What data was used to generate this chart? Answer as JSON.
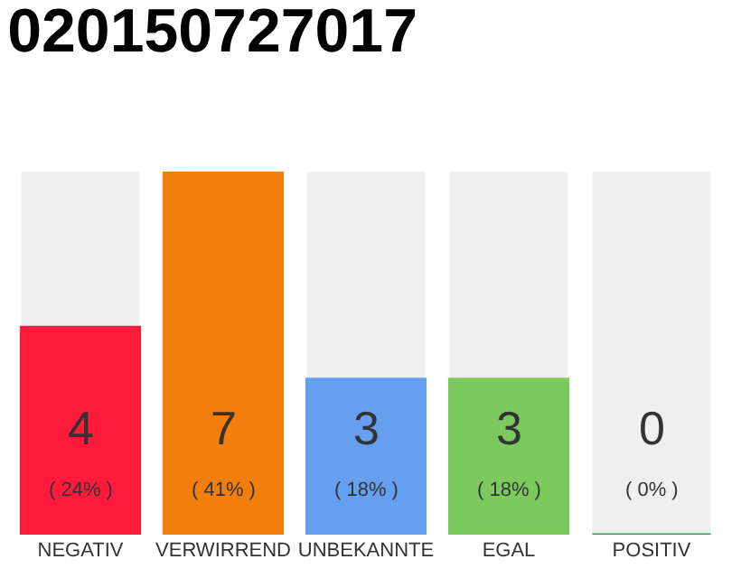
{
  "chart_data": {
    "type": "bar",
    "title": "020150727017",
    "categories": [
      "NEGATIV",
      "VERWIRREND",
      "UNBEKANNTE",
      "EGAL",
      "POSITIV"
    ],
    "values": [
      4,
      7,
      3,
      3,
      0
    ],
    "colors": [
      "#ff1a3c",
      "#f27f0c",
      "#679ff0",
      "#7cc95d",
      "#2aa046"
    ],
    "value_labels": [
      "4\n( 24% )",
      "7\n( 41% )",
      "3\n( 18% )",
      "3\n( 18% )",
      "0\n( 0% )"
    ]
  }
}
